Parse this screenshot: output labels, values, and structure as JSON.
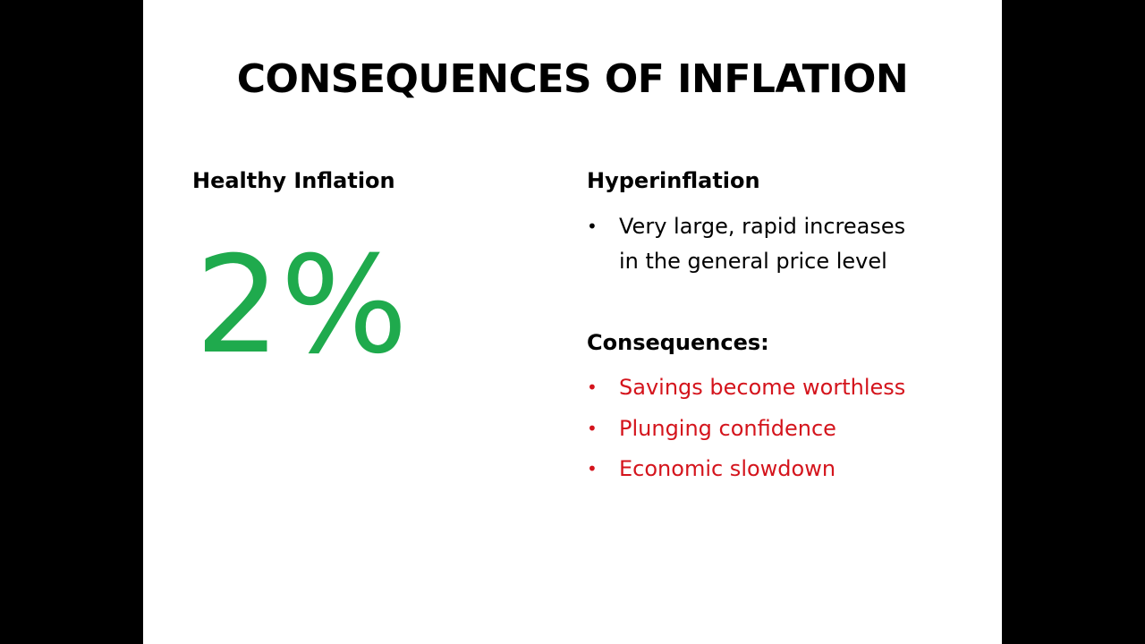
{
  "slide": {
    "title": "CONSEQUENCES OF INFLATION",
    "left": {
      "heading": "Healthy Inflation",
      "big_value": "2%"
    },
    "right": {
      "heading": "Hyperinflation",
      "description": [
        "Very large, rapid increases",
        "in the general price level"
      ],
      "consequences_heading": "Consequences:",
      "consequences": [
        "Savings become worthless",
        "Plunging confidence",
        "Economic slowdown"
      ]
    },
    "bullet_char": "•"
  },
  "colors": {
    "background": "#ffffff",
    "letterbox": "#000000",
    "text": "#000000",
    "healthy_green": "#1faa4d",
    "warning_red": "#d4141c"
  }
}
